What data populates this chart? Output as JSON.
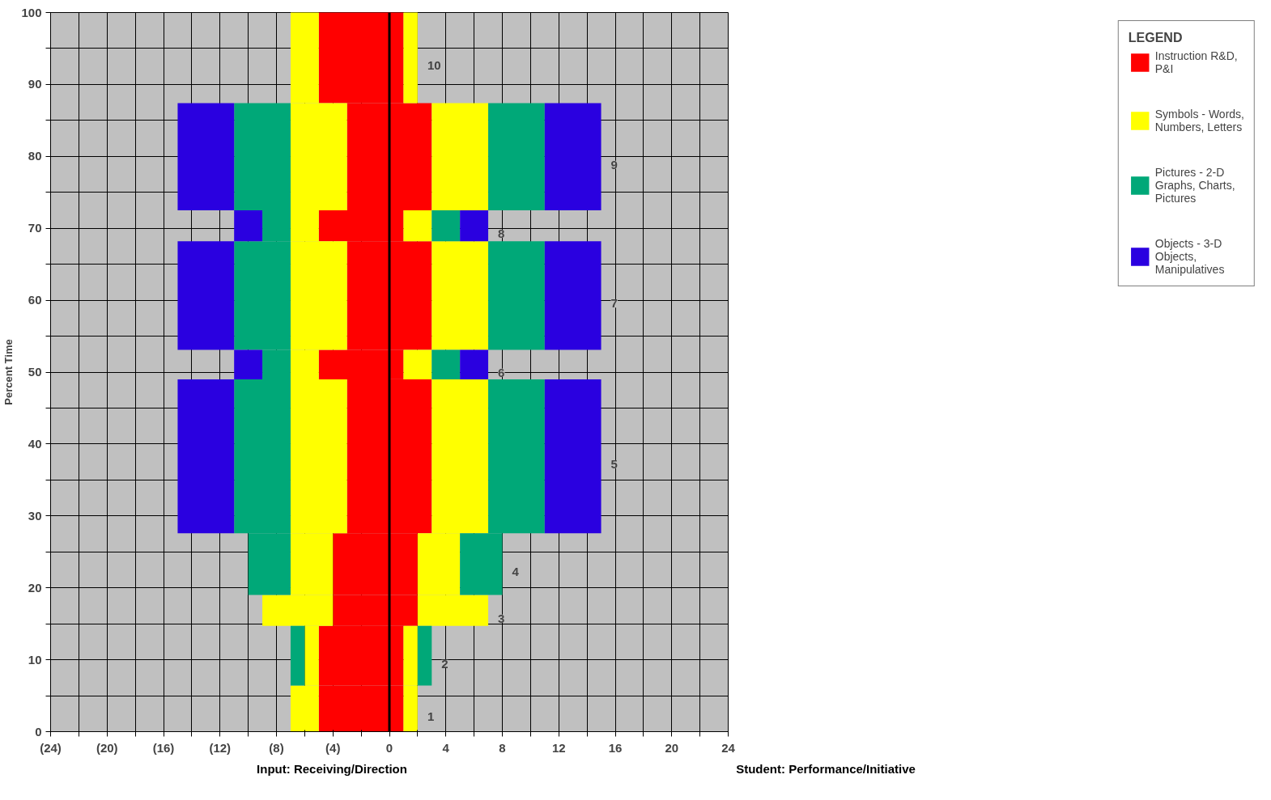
{
  "chart_data": {
    "type": "bar",
    "orientation": "horizontal",
    "stacked": true,
    "ylabel": "Percent Time",
    "xlabel": "Input: Receiving/Direction",
    "legend_title": "LEGEND",
    "legend": "right",
    "grid": true,
    "x": [
      3.2,
      10.55,
      16.85,
      23.3,
      38.3,
      51.05,
      60.65,
      70.35,
      79.95,
      93.75
    ],
    "series": [
      {
        "name": "Instruction R&D, P&I",
        "color": "#ff0000",
        "values": [
          -5,
          -5,
          -4,
          -4,
          -3,
          -5,
          -3,
          -5,
          -3,
          -5
        ]
      },
      {
        "name": "Symbols - Words, Numbers, Letters",
        "color": "#ffff00",
        "values": [
          -2,
          -1,
          -5,
          -3,
          -4,
          -2,
          -4,
          -2,
          -4,
          -2
        ]
      },
      {
        "name": "Pictures - 2-D Graphs, Charts, Pictures",
        "color": "#00a878",
        "values": [
          null,
          -1,
          null,
          -3,
          -4,
          -2,
          -4,
          -2,
          -4,
          null
        ]
      },
      {
        "name": "Objects - 3-D Objects, Manipulatives",
        "color": "#2a00e0",
        "values": [
          null,
          null,
          null,
          null,
          -4,
          -2,
          -4,
          -2,
          -4,
          null
        ]
      },
      {
        "color": "#ff0000",
        "values": [
          1,
          1,
          2,
          2,
          3,
          1,
          3,
          1,
          3,
          1
        ]
      },
      {
        "color": "#ffff00",
        "values": [
          1,
          1,
          5,
          3,
          4,
          2,
          4,
          2,
          4,
          1
        ]
      },
      {
        "color": "#00a878",
        "values": [
          null,
          1,
          null,
          3,
          4,
          2,
          4,
          2,
          4,
          null
        ]
      },
      {
        "color": "#2a00e0",
        "values": [
          null,
          null,
          null,
          null,
          4,
          2,
          4,
          2,
          4,
          null
        ]
      }
    ],
    "xlim": [
      -24,
      24
    ],
    "xticks": [
      {
        "value": -24,
        "label": "(24)"
      },
      {
        "value": -22,
        "label": null
      },
      {
        "value": -20,
        "label": "(20)"
      },
      {
        "value": -18,
        "label": null
      },
      {
        "value": -16,
        "label": "(16)"
      },
      {
        "value": -14,
        "label": null
      },
      {
        "value": -12,
        "label": "(12)"
      },
      {
        "value": -10,
        "label": null
      },
      {
        "value": -8,
        "label": "(8)"
      },
      {
        "value": -6,
        "label": null
      },
      {
        "value": -4,
        "label": "(4)"
      },
      {
        "value": -2,
        "label": null
      },
      0,
      {
        "value": 2,
        "label": null
      },
      4,
      {
        "value": 6,
        "label": null
      },
      8,
      {
        "value": 10,
        "label": null
      },
      12,
      {
        "value": 14,
        "label": null
      },
      16,
      {
        "value": 18,
        "label": null
      },
      20,
      {
        "value": 22,
        "label": null
      },
      24
    ],
    "ylim": [
      0,
      100
    ],
    "yticks": [
      0,
      {
        "value": 5,
        "label": null
      },
      10,
      {
        "value": 15,
        "label": null
      },
      20,
      {
        "value": 25,
        "label": null
      },
      30,
      {
        "value": 35,
        "label": null
      },
      40,
      {
        "value": 45,
        "label": null
      },
      50,
      {
        "value": 55,
        "label": null
      },
      60,
      {
        "value": 65,
        "label": null
      },
      70,
      {
        "value": 75,
        "label": null
      },
      80,
      {
        "value": 85,
        "label": null
      },
      90,
      {
        "value": 95,
        "label": null
      },
      100
    ],
    "ref_lines": [
      {
        "axis": "x",
        "value": 0,
        "color": "#000000"
      }
    ],
    "annotations": [
      "1",
      "2",
      "3",
      "4",
      "5",
      "6",
      "7",
      "8",
      "9",
      "10",
      "Student: Performance/Initiative"
    ]
  }
}
